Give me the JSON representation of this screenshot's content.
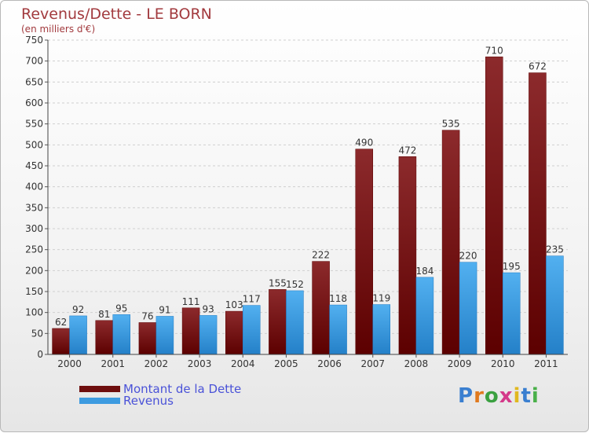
{
  "title": "Revenus/Dette - LE BORN",
  "subtitle": "(en milliers d'€)",
  "logo": "Proxiti",
  "colors": {
    "debt": "#8b1a1a",
    "debt_dark": "#5a0000",
    "revenue": "#3da0e3",
    "revenue_dark": "#1d79c4",
    "title": "#a23a3e",
    "legend_text": "#4a52d8",
    "grid": "#cfcfcf"
  },
  "legend": [
    {
      "label": "Montant de la Dette",
      "color": "#6e0e0e"
    },
    {
      "label": "Revenus",
      "color": "#3d9be0"
    }
  ],
  "chart_data": {
    "type": "bar",
    "categories": [
      "2000",
      "2001",
      "2002",
      "2003",
      "2004",
      "2005",
      "2006",
      "2007",
      "2008",
      "2009",
      "2010",
      "2011"
    ],
    "series": [
      {
        "name": "Montant de la Dette",
        "values": [
          62,
          81,
          76,
          111,
          103,
          155,
          222,
          490,
          472,
          535,
          710,
          672
        ]
      },
      {
        "name": "Revenus",
        "values": [
          92,
          95,
          91,
          93,
          117,
          152,
          118,
          119,
          184,
          220,
          195,
          235
        ]
      }
    ],
    "ylim": [
      0,
      750
    ],
    "yticks": [
      0,
      50,
      100,
      150,
      200,
      250,
      300,
      350,
      400,
      450,
      500,
      550,
      600,
      650,
      700,
      750
    ],
    "grid": "horizontal dashed",
    "legend_position": "bottom-left"
  }
}
